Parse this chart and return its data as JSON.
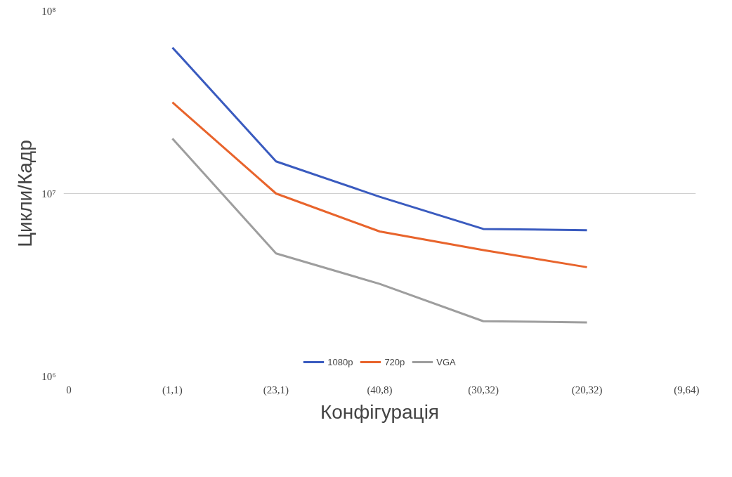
{
  "chart_data": {
    "type": "line",
    "xlabel": "Конфігурація",
    "ylabel": "Цикли/Кадр",
    "categories": [
      "0",
      "(1,1)",
      "(23,1)",
      "(40,8)",
      "(30,32)",
      "(20,32)",
      "(9,64)"
    ],
    "series": [
      {
        "name": "1080p",
        "color": "#3a5bbf",
        "values": [
          null,
          63000000,
          15000000,
          9600000,
          6400000,
          6300000,
          null
        ]
      },
      {
        "name": "720p",
        "color": "#e8642c",
        "values": [
          null,
          31600000,
          10000000,
          6200000,
          4900000,
          3950000,
          null
        ]
      },
      {
        "name": "VGA",
        "color": "#9e9e9e",
        "values": [
          null,
          20000000,
          4700000,
          3200000,
          2000000,
          1970000,
          null
        ]
      }
    ],
    "log": "y",
    "ylim": [
      1000000,
      100000000
    ],
    "yticks": [
      {
        "value": 1000000,
        "label": "10⁶"
      },
      {
        "value": 10000000,
        "label": "10⁷"
      },
      {
        "value": 100000000,
        "label": "10⁸"
      }
    ],
    "grid": "y",
    "legend": "bottom",
    "line_style": "solid",
    "marker": "none"
  }
}
